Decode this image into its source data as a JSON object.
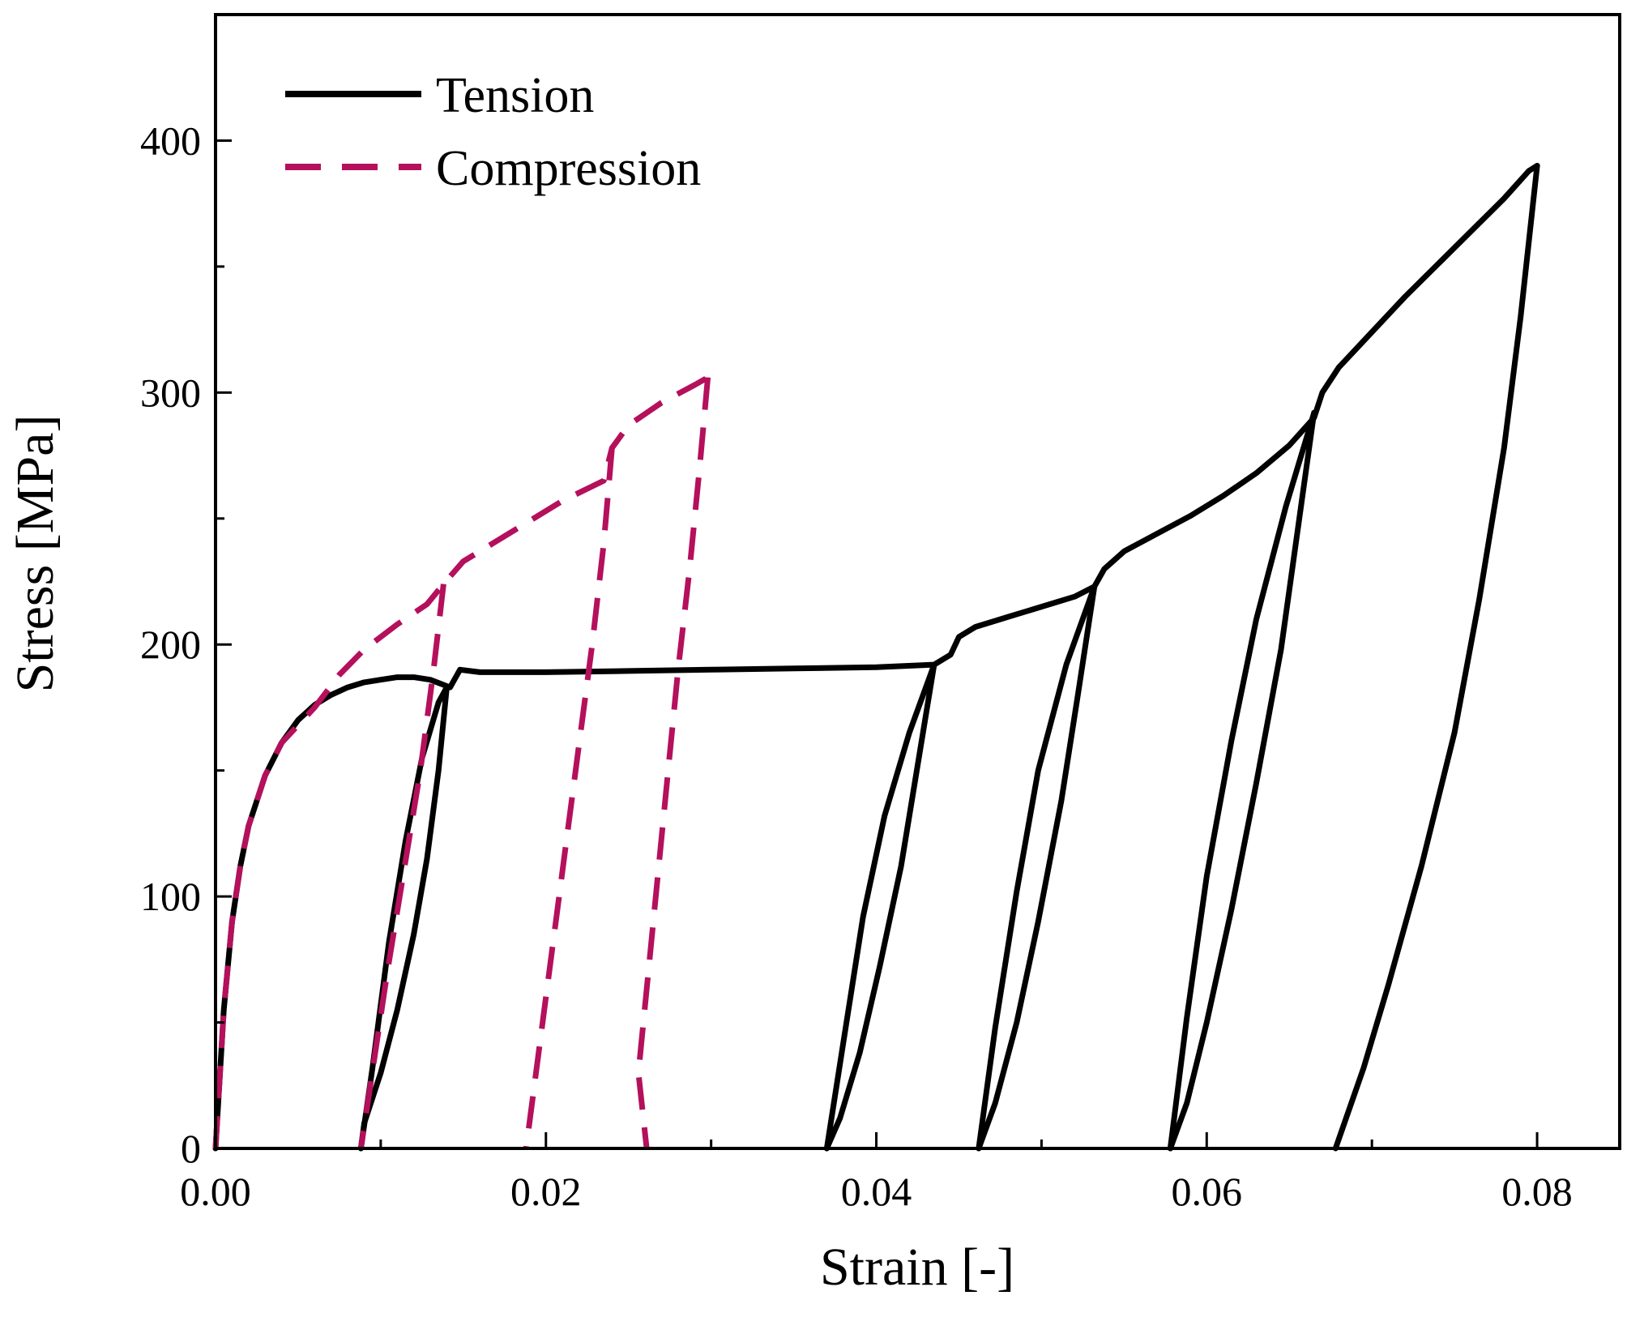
{
  "chart_data": {
    "type": "line",
    "xlabel": "Strain [-]",
    "ylabel": "Stress [MPa]",
    "xlim": [
      0,
      0.085
    ],
    "ylim": [
      0,
      450
    ],
    "xticks": [
      0,
      0.02,
      0.04,
      0.06,
      0.08
    ],
    "xtick_labels": [
      "0.00",
      "0.02",
      "0.04",
      "0.06",
      "0.08"
    ],
    "yticks": [
      0,
      100,
      200,
      300,
      400
    ],
    "ytick_labels": [
      "0",
      "100",
      "200",
      "300",
      "400"
    ],
    "legend_position": "top-left",
    "series": [
      {
        "name": "Tension",
        "color": "#000000",
        "style": "solid",
        "segments": [
          [
            [
              0,
              0
            ],
            [
              0.0005,
              55
            ],
            [
              0.001,
              90
            ],
            [
              0.0015,
              112
            ],
            [
              0.002,
              128
            ],
            [
              0.003,
              148
            ],
            [
              0.004,
              161
            ],
            [
              0.005,
              170
            ],
            [
              0.006,
              176
            ],
            [
              0.007,
              180
            ],
            [
              0.008,
              183
            ],
            [
              0.009,
              185
            ],
            [
              0.01,
              186
            ],
            [
              0.011,
              187
            ],
            [
              0.012,
              187
            ],
            [
              0.013,
              186
            ],
            [
              0.0138,
              184
            ],
            [
              0.0142,
              183
            ],
            [
              0.0148,
              190
            ],
            [
              0.016,
              189
            ],
            [
              0.02,
              189
            ],
            [
              0.025,
              189.5
            ],
            [
              0.03,
              190
            ],
            [
              0.035,
              190.5
            ],
            [
              0.04,
              191
            ],
            [
              0.0435,
              192
            ],
            [
              0.0445,
              196
            ],
            [
              0.045,
              203
            ],
            [
              0.046,
              207
            ],
            [
              0.048,
              211
            ],
            [
              0.05,
              215
            ],
            [
              0.052,
              219
            ],
            [
              0.0532,
              223
            ],
            [
              0.0538,
              230
            ],
            [
              0.055,
              237
            ],
            [
              0.057,
              244
            ],
            [
              0.059,
              251
            ],
            [
              0.061,
              259
            ],
            [
              0.063,
              268
            ],
            [
              0.065,
              279
            ],
            [
              0.0665,
              290
            ],
            [
              0.067,
              300
            ],
            [
              0.068,
              310
            ],
            [
              0.07,
              324
            ],
            [
              0.072,
              338
            ],
            [
              0.074,
              351
            ],
            [
              0.076,
              364
            ],
            [
              0.078,
              377
            ],
            [
              0.0795,
              388
            ],
            [
              0.08,
              390
            ]
          ],
          [
            [
              0.014,
              183
            ],
            [
              0.0135,
              150
            ],
            [
              0.0128,
              115
            ],
            [
              0.012,
              85
            ],
            [
              0.011,
              55
            ],
            [
              0.01,
              30
            ],
            [
              0.009,
              10
            ],
            [
              0.0088,
              0
            ]
          ],
          [
            [
              0.0088,
              0
            ],
            [
              0.0095,
              32
            ],
            [
              0.0105,
              82
            ],
            [
              0.0115,
              122
            ],
            [
              0.0125,
              155
            ],
            [
              0.0135,
              177
            ],
            [
              0.014,
              183
            ]
          ],
          [
            [
              0.0435,
              192
            ],
            [
              0.0425,
              152
            ],
            [
              0.0415,
              112
            ],
            [
              0.0402,
              72
            ],
            [
              0.039,
              38
            ],
            [
              0.0378,
              12
            ],
            [
              0.037,
              0
            ]
          ],
          [
            [
              0.037,
              0
            ],
            [
              0.038,
              42
            ],
            [
              0.0392,
              92
            ],
            [
              0.0405,
              132
            ],
            [
              0.042,
              165
            ],
            [
              0.0435,
              192
            ]
          ],
          [
            [
              0.0532,
              223
            ],
            [
              0.0522,
              180
            ],
            [
              0.0512,
              138
            ],
            [
              0.0498,
              90
            ],
            [
              0.0485,
              50
            ],
            [
              0.0472,
              18
            ],
            [
              0.0462,
              0
            ]
          ],
          [
            [
              0.0462,
              0
            ],
            [
              0.0472,
              48
            ],
            [
              0.0485,
              102
            ],
            [
              0.0498,
              150
            ],
            [
              0.0515,
              192
            ],
            [
              0.0532,
              223
            ]
          ],
          [
            [
              0.0665,
              292
            ],
            [
              0.0655,
              245
            ],
            [
              0.0645,
              198
            ],
            [
              0.063,
              145
            ],
            [
              0.0615,
              95
            ],
            [
              0.06,
              50
            ],
            [
              0.0588,
              18
            ],
            [
              0.0578,
              0
            ]
          ],
          [
            [
              0.0578,
              0
            ],
            [
              0.0588,
              52
            ],
            [
              0.06,
              108
            ],
            [
              0.0615,
              162
            ],
            [
              0.063,
              210
            ],
            [
              0.0648,
              255
            ],
            [
              0.0665,
              292
            ]
          ],
          [
            [
              0.08,
              390
            ],
            [
              0.079,
              330
            ],
            [
              0.078,
              278
            ],
            [
              0.0765,
              218
            ],
            [
              0.075,
              165
            ],
            [
              0.073,
              112
            ],
            [
              0.071,
              65
            ],
            [
              0.0695,
              32
            ],
            [
              0.0678,
              0
            ]
          ]
        ]
      },
      {
        "name": "Compression",
        "color": "#b5105c",
        "style": "dashed",
        "segments": [
          [
            [
              0,
              0
            ],
            [
              0.0005,
              55
            ],
            [
              0.001,
              90
            ],
            [
              0.0015,
              112
            ],
            [
              0.002,
              128
            ],
            [
              0.003,
              148
            ],
            [
              0.004,
              161
            ],
            [
              0.005,
              168
            ],
            [
              0.006,
              175
            ],
            [
              0.0075,
              188
            ],
            [
              0.009,
              198
            ],
            [
              0.011,
              208
            ],
            [
              0.0128,
              216
            ],
            [
              0.0138,
              224
            ],
            [
              0.015,
              233
            ],
            [
              0.017,
              241
            ],
            [
              0.019,
              249
            ],
            [
              0.021,
              257
            ],
            [
              0.0235,
              265
            ],
            [
              0.024,
              278
            ],
            [
              0.025,
              287
            ],
            [
              0.027,
              296
            ],
            [
              0.029,
              303
            ],
            [
              0.0298,
              306
            ]
          ],
          [
            [
              0.0138,
              224
            ],
            [
              0.0132,
              190
            ],
            [
              0.0124,
              150
            ],
            [
              0.0114,
              110
            ],
            [
              0.0104,
              70
            ],
            [
              0.0096,
              35
            ],
            [
              0.0088,
              0
            ]
          ],
          [
            [
              0.024,
              278
            ],
            [
              0.0235,
              240
            ],
            [
              0.0228,
              200
            ],
            [
              0.022,
              160
            ],
            [
              0.0212,
              120
            ],
            [
              0.0204,
              80
            ],
            [
              0.0196,
              40
            ],
            [
              0.0188,
              0
            ]
          ],
          [
            [
              0.0298,
              306
            ],
            [
              0.0293,
              270
            ],
            [
              0.0287,
              230
            ],
            [
              0.028,
              190
            ],
            [
              0.0274,
              150
            ],
            [
              0.0268,
              110
            ],
            [
              0.0262,
              70
            ],
            [
              0.0256,
              30
            ],
            [
              0.0261,
              0
            ]
          ]
        ]
      }
    ]
  }
}
